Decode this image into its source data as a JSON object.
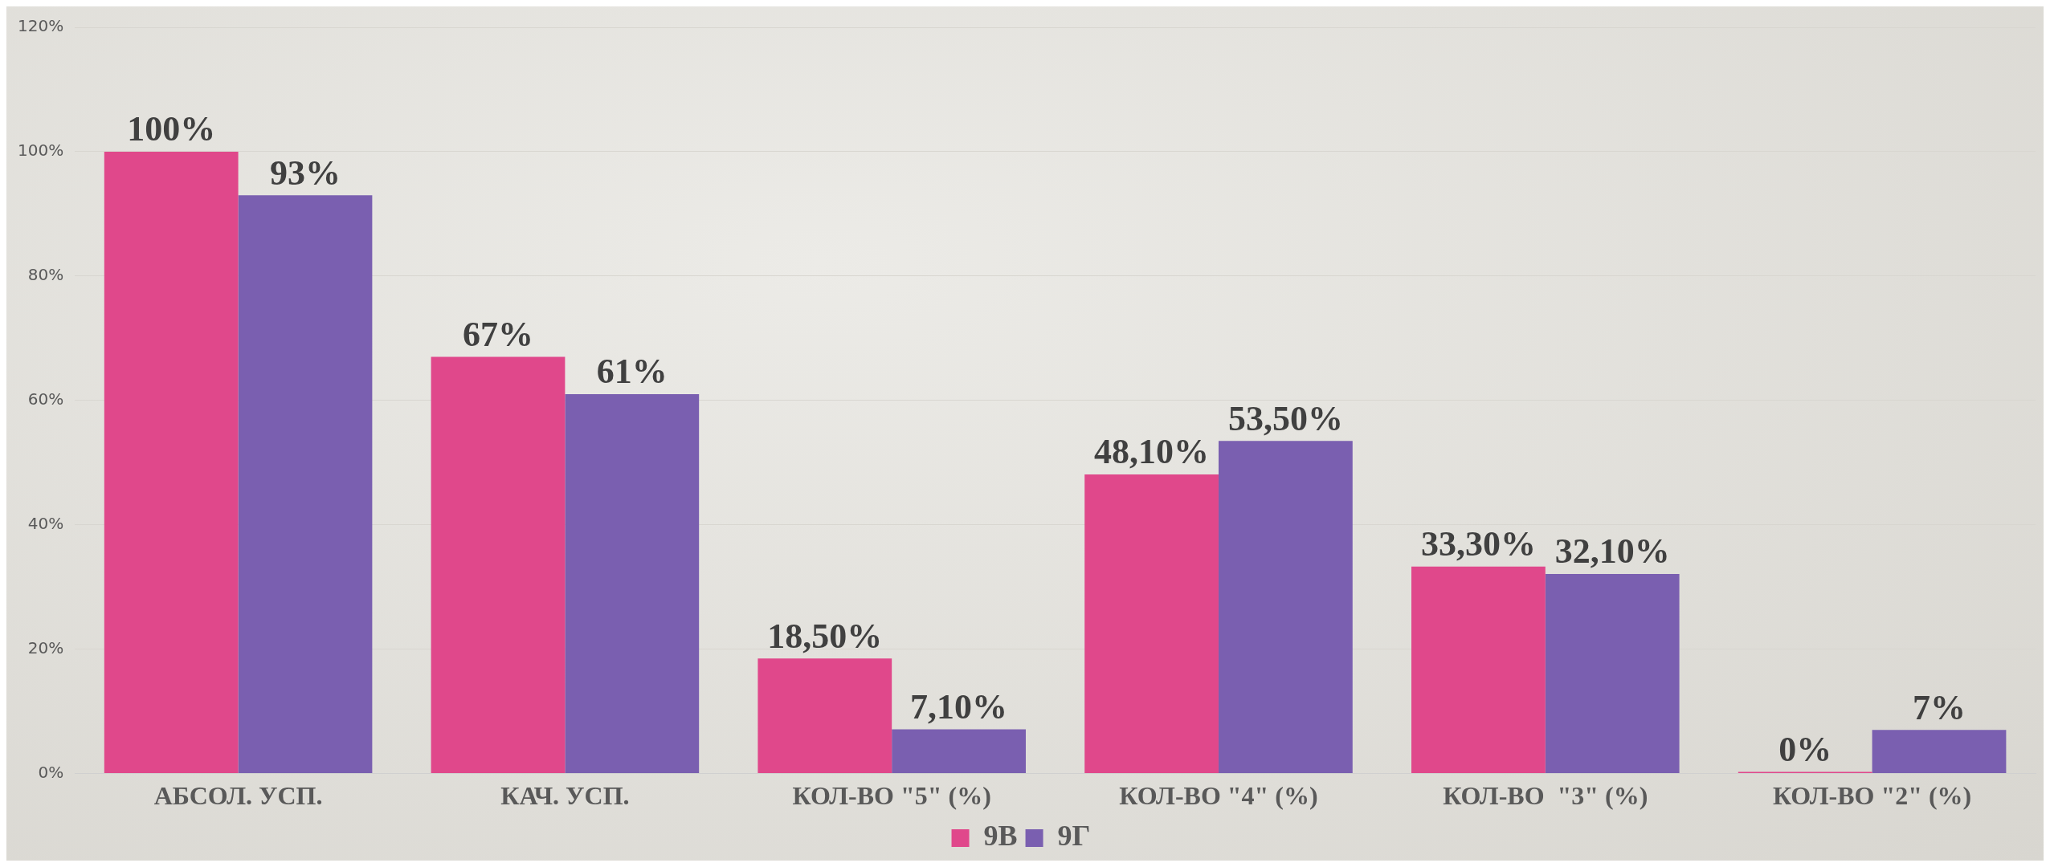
{
  "chart_data": {
    "type": "bar",
    "categories": [
      "АБСОЛ. УСП.",
      "КАЧ. УСП.",
      "КОЛ-ВО \"5\" (%)",
      "КОЛ-ВО \"4\" (%)",
      "КОЛ-ВО  \"3\" (%)",
      "КОЛ-ВО \"2\" (%)"
    ],
    "series": [
      {
        "name": "9В",
        "color": "#e0488b",
        "values": [
          100,
          67,
          18.5,
          48.1,
          33.3,
          0
        ],
        "value_labels": [
          "100%",
          "67%",
          "18,50%",
          "48,10%",
          "33,30%",
          "0%"
        ]
      },
      {
        "name": "9Г",
        "color": "#7a5fb0",
        "values": [
          93,
          61,
          7.1,
          53.5,
          32.1,
          7
        ],
        "value_labels": [
          "93%",
          "61%",
          "7,10%",
          "53,50%",
          "32,10%",
          "7%"
        ]
      }
    ],
    "ylim": [
      0,
      120
    ],
    "yticks": [
      {
        "value": 0,
        "label": "0%"
      },
      {
        "value": 20,
        "label": "20%"
      },
      {
        "value": 40,
        "label": "40%"
      },
      {
        "value": 60,
        "label": "60%"
      },
      {
        "value": 80,
        "label": "80%"
      },
      {
        "value": 100,
        "label": "100%"
      },
      {
        "value": 120,
        "label": "120%"
      }
    ],
    "grid": "y",
    "legend": "bottom"
  }
}
